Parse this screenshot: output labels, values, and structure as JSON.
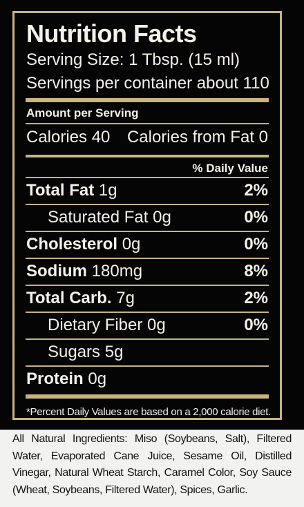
{
  "label": {
    "title": "Nutrition Facts",
    "serving_size": "Serving Size: 1 Tbsp. (15 ml)",
    "servings_per_container": "Servings per container about 110",
    "amount_heading": "Amount per Serving",
    "calories": "Calories 40",
    "calories_from_fat": "Calories from Fat 0",
    "daily_value_heading": "% Daily Value",
    "nutrients": [
      {
        "name": "Total Fat",
        "amount": "1g",
        "percent": "2%"
      },
      {
        "name": "Saturated Fat",
        "amount": "0g",
        "percent": "0%"
      },
      {
        "name": "Cholesterol",
        "amount": "0g",
        "percent": "0%"
      },
      {
        "name": "Sodium",
        "amount": "180mg",
        "percent": "8%"
      },
      {
        "name": "Total Carb.",
        "amount": "7g",
        "percent": "2%"
      },
      {
        "name": "Dietary Fiber",
        "amount": "0g",
        "percent": "0%"
      },
      {
        "name": "Sugars",
        "amount": "5g",
        "percent": ""
      },
      {
        "name": "Protein",
        "amount": "0g",
        "percent": ""
      }
    ],
    "footnote": "*Percent Daily Values are based on a 2,000 calorie diet."
  },
  "ingredients": "All Natural Ingredients: Miso (Soybeans, Salt), Filtered Water, Evaporated Cane Juice, Sesame Oil, Distilled Vinegar, Natural Wheat Starch, Caramel Color, Soy Sauce (Wheat, Soybeans, Filtered Water), Spices, Garlic.",
  "colors": {
    "panel_background": "#050505",
    "accent_gold": "#c8b47c",
    "label_text": "#f4f1e8",
    "ingredients_text": "#111111",
    "page_background": "#f2f2f0"
  }
}
